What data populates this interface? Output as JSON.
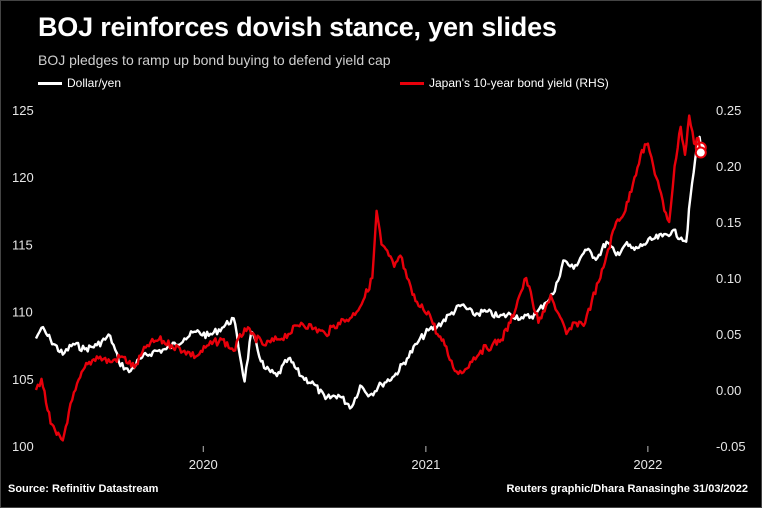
{
  "title": "BOJ reinforces dovish stance, yen slides",
  "subtitle": "BOJ pledges to ramp up bond buying to defend yield cap",
  "legend": {
    "dollar_yen": "Dollar/yen",
    "jgb_yield": "Japan's 10-year bond yield (RHS)"
  },
  "footer": {
    "source": "Source: Refinitiv Datastream",
    "credit": "Reuters graphic/Dhara Ranasinghe 31/03/2022"
  },
  "colors": {
    "background": "#000000",
    "dollar_yen": "#ffffff",
    "jgb_yield": "#e8000b"
  },
  "chart_data": {
    "type": "line",
    "x_range": [
      "2019-04-01",
      "2022-03-31"
    ],
    "x_ticks": [
      {
        "date": "2020-01-01",
        "label": "2020"
      },
      {
        "date": "2021-01-01",
        "label": "2021"
      },
      {
        "date": "2022-01-01",
        "label": "2022"
      }
    ],
    "y_left": {
      "min": 100,
      "max": 125,
      "ticks": [
        100,
        105,
        110,
        115,
        120,
        125
      ]
    },
    "y_right": {
      "min": -0.05,
      "max": 0.25,
      "ticks": [
        "-0.05",
        "0.00",
        "0.05",
        "0.10",
        "0.15",
        "0.20",
        "0.25"
      ]
    },
    "series": [
      {
        "name": "Dollar/yen",
        "axis": "left",
        "points": [
          [
            "2019-04-01",
            108.0
          ],
          [
            "2019-04-10",
            108.8
          ],
          [
            "2019-04-25",
            107.9
          ],
          [
            "2019-05-15",
            106.8
          ],
          [
            "2019-06-01",
            107.6
          ],
          [
            "2019-06-20",
            107.2
          ],
          [
            "2019-07-10",
            107.5
          ],
          [
            "2019-08-01",
            108.2
          ],
          [
            "2019-08-15",
            106.3
          ],
          [
            "2019-09-01",
            105.5
          ],
          [
            "2019-09-20",
            106.5
          ],
          [
            "2019-10-10",
            107.0
          ],
          [
            "2019-11-01",
            107.2
          ],
          [
            "2019-12-01",
            108.0
          ],
          [
            "2019-12-20",
            108.5
          ],
          [
            "2020-01-10",
            108.2
          ],
          [
            "2020-02-01",
            108.8
          ],
          [
            "2020-02-20",
            109.5
          ],
          [
            "2020-03-09",
            104.8
          ],
          [
            "2020-03-20",
            108.5
          ],
          [
            "2020-04-10",
            105.8
          ],
          [
            "2020-05-01",
            105.2
          ],
          [
            "2020-05-20",
            106.5
          ],
          [
            "2020-06-10",
            105.2
          ],
          [
            "2020-07-01",
            104.6
          ],
          [
            "2020-07-20",
            103.5
          ],
          [
            "2020-08-10",
            103.8
          ],
          [
            "2020-09-01",
            102.9
          ],
          [
            "2020-09-15",
            104.5
          ],
          [
            "2020-10-01",
            103.8
          ],
          [
            "2020-10-20",
            104.6
          ],
          [
            "2020-11-10",
            105.2
          ],
          [
            "2020-12-01",
            106.5
          ],
          [
            "2020-12-20",
            107.8
          ],
          [
            "2021-01-05",
            108.6
          ],
          [
            "2021-01-20",
            108.9
          ],
          [
            "2021-02-10",
            109.8
          ],
          [
            "2021-03-01",
            110.5
          ],
          [
            "2021-03-20",
            109.8
          ],
          [
            "2021-04-10",
            110.0
          ],
          [
            "2021-05-01",
            109.6
          ],
          [
            "2021-05-20",
            109.8
          ],
          [
            "2021-06-10",
            109.5
          ],
          [
            "2021-07-01",
            109.8
          ],
          [
            "2021-07-15",
            110.6
          ],
          [
            "2021-08-01",
            111.5
          ],
          [
            "2021-08-15",
            113.8
          ],
          [
            "2021-09-01",
            113.2
          ],
          [
            "2021-09-20",
            114.6
          ],
          [
            "2021-10-10",
            114.0
          ],
          [
            "2021-10-25",
            115.2
          ],
          [
            "2021-11-10",
            114.2
          ],
          [
            "2021-11-25",
            115.0
          ],
          [
            "2021-12-10",
            114.6
          ],
          [
            "2021-12-25",
            115.0
          ],
          [
            "2022-01-10",
            115.4
          ],
          [
            "2022-01-25",
            115.6
          ],
          [
            "2022-02-10",
            116.0
          ],
          [
            "2022-02-25",
            115.5
          ],
          [
            "2022-03-05",
            115.2
          ],
          [
            "2022-03-12",
            118.5
          ],
          [
            "2022-03-20",
            121.4
          ],
          [
            "2022-03-27",
            123.0
          ],
          [
            "2022-03-29",
            122.2
          ]
        ]
      },
      {
        "name": "Japan's 10-year bond yield (RHS)",
        "axis": "right",
        "points": [
          [
            "2019-04-01",
            0.0
          ],
          [
            "2019-04-10",
            0.01
          ],
          [
            "2019-04-25",
            -0.03
          ],
          [
            "2019-05-05",
            -0.04
          ],
          [
            "2019-05-15",
            -0.045
          ],
          [
            "2019-05-25",
            -0.02
          ],
          [
            "2019-06-05",
            0.0
          ],
          [
            "2019-06-20",
            0.02
          ],
          [
            "2019-07-10",
            0.03
          ],
          [
            "2019-08-01",
            0.025
          ],
          [
            "2019-08-20",
            0.03
          ],
          [
            "2019-09-10",
            0.02
          ],
          [
            "2019-10-01",
            0.04
          ],
          [
            "2019-10-20",
            0.045
          ],
          [
            "2019-11-10",
            0.04
          ],
          [
            "2019-12-01",
            0.035
          ],
          [
            "2019-12-20",
            0.03
          ],
          [
            "2020-01-10",
            0.04
          ],
          [
            "2020-02-01",
            0.045
          ],
          [
            "2020-02-20",
            0.035
          ],
          [
            "2020-03-09",
            0.055
          ],
          [
            "2020-03-20",
            0.05
          ],
          [
            "2020-04-10",
            0.04
          ],
          [
            "2020-05-01",
            0.045
          ],
          [
            "2020-05-20",
            0.05
          ],
          [
            "2020-06-10",
            0.06
          ],
          [
            "2020-07-01",
            0.055
          ],
          [
            "2020-07-20",
            0.05
          ],
          [
            "2020-08-10",
            0.06
          ],
          [
            "2020-09-01",
            0.065
          ],
          [
            "2020-09-20",
            0.08
          ],
          [
            "2020-10-05",
            0.1
          ],
          [
            "2020-10-12",
            0.16
          ],
          [
            "2020-10-20",
            0.13
          ],
          [
            "2020-11-01",
            0.12
          ],
          [
            "2020-11-10",
            0.11
          ],
          [
            "2020-11-20",
            0.12
          ],
          [
            "2020-12-01",
            0.1
          ],
          [
            "2020-12-10",
            0.085
          ],
          [
            "2020-12-20",
            0.075
          ],
          [
            "2021-01-05",
            0.07
          ],
          [
            "2021-01-20",
            0.05
          ],
          [
            "2021-02-01",
            0.04
          ],
          [
            "2021-02-15",
            0.02
          ],
          [
            "2021-03-01",
            0.015
          ],
          [
            "2021-03-15",
            0.025
          ],
          [
            "2021-04-01",
            0.035
          ],
          [
            "2021-04-20",
            0.04
          ],
          [
            "2021-05-05",
            0.045
          ],
          [
            "2021-05-20",
            0.06
          ],
          [
            "2021-06-01",
            0.08
          ],
          [
            "2021-06-15",
            0.1
          ],
          [
            "2021-06-25",
            0.08
          ],
          [
            "2021-07-05",
            0.06
          ],
          [
            "2021-07-15",
            0.07
          ],
          [
            "2021-07-25",
            0.085
          ],
          [
            "2021-08-05",
            0.07
          ],
          [
            "2021-08-20",
            0.05
          ],
          [
            "2021-09-05",
            0.06
          ],
          [
            "2021-09-20",
            0.06
          ],
          [
            "2021-10-01",
            0.08
          ],
          [
            "2021-10-15",
            0.1
          ],
          [
            "2021-10-25",
            0.12
          ],
          [
            "2021-11-10",
            0.15
          ],
          [
            "2021-11-25",
            0.16
          ],
          [
            "2021-12-10",
            0.19
          ],
          [
            "2021-12-20",
            0.21
          ],
          [
            "2022-01-01",
            0.22
          ],
          [
            "2022-01-10",
            0.2
          ],
          [
            "2022-01-20",
            0.18
          ],
          [
            "2022-01-28",
            0.16
          ],
          [
            "2022-02-05",
            0.15
          ],
          [
            "2022-02-14",
            0.2
          ],
          [
            "2022-02-24",
            0.235
          ],
          [
            "2022-03-03",
            0.21
          ],
          [
            "2022-03-10",
            0.245
          ],
          [
            "2022-03-18",
            0.22
          ],
          [
            "2022-03-25",
            0.225
          ],
          [
            "2022-03-29",
            0.212
          ]
        ]
      }
    ]
  }
}
